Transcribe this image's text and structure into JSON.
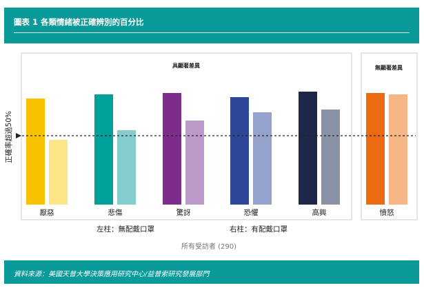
{
  "header": {
    "title": "圖表 1 各類情緒被正確辨別的百分比"
  },
  "footer": {
    "source": "資料來源：美國天普大學決策應用研究中心/益普索研究發展部門"
  },
  "chart_data": {
    "type": "bar",
    "ylabel": "正確率超過50%",
    "threshold": 50,
    "ylim": [
      0,
      100
    ],
    "panels": [
      {
        "label": "具顯著差異",
        "categories": [
          "厭惡",
          "悲傷",
          "驚訝",
          "恐懼",
          "高興"
        ]
      },
      {
        "label": "無顯著差異",
        "categories": [
          "憤怒"
        ]
      }
    ],
    "categories": [
      "厭惡",
      "悲傷",
      "驚訝",
      "恐懼",
      "高興",
      "憤怒"
    ],
    "series": [
      {
        "name": "左柱：無配戴口罩",
        "values": [
          77,
          80,
          81,
          78,
          82,
          81
        ],
        "colors": [
          "#f8c200",
          "#00a19a",
          "#7b2d88",
          "#2e4697",
          "#1e2749",
          "#ec6b12"
        ]
      },
      {
        "name": "右柱：有配戴口罩",
        "values": [
          47,
          54,
          61,
          67,
          69,
          80
        ],
        "colors": [
          "#fde588",
          "#84cdcd",
          "#bb99c8",
          "#95a3cc",
          "#8a93a6",
          "#f5b585"
        ]
      }
    ],
    "legend": [
      "左柱：無配戴口罩",
      "右柱：有配戴口罩"
    ],
    "note": "所有受訪者 (290)"
  }
}
